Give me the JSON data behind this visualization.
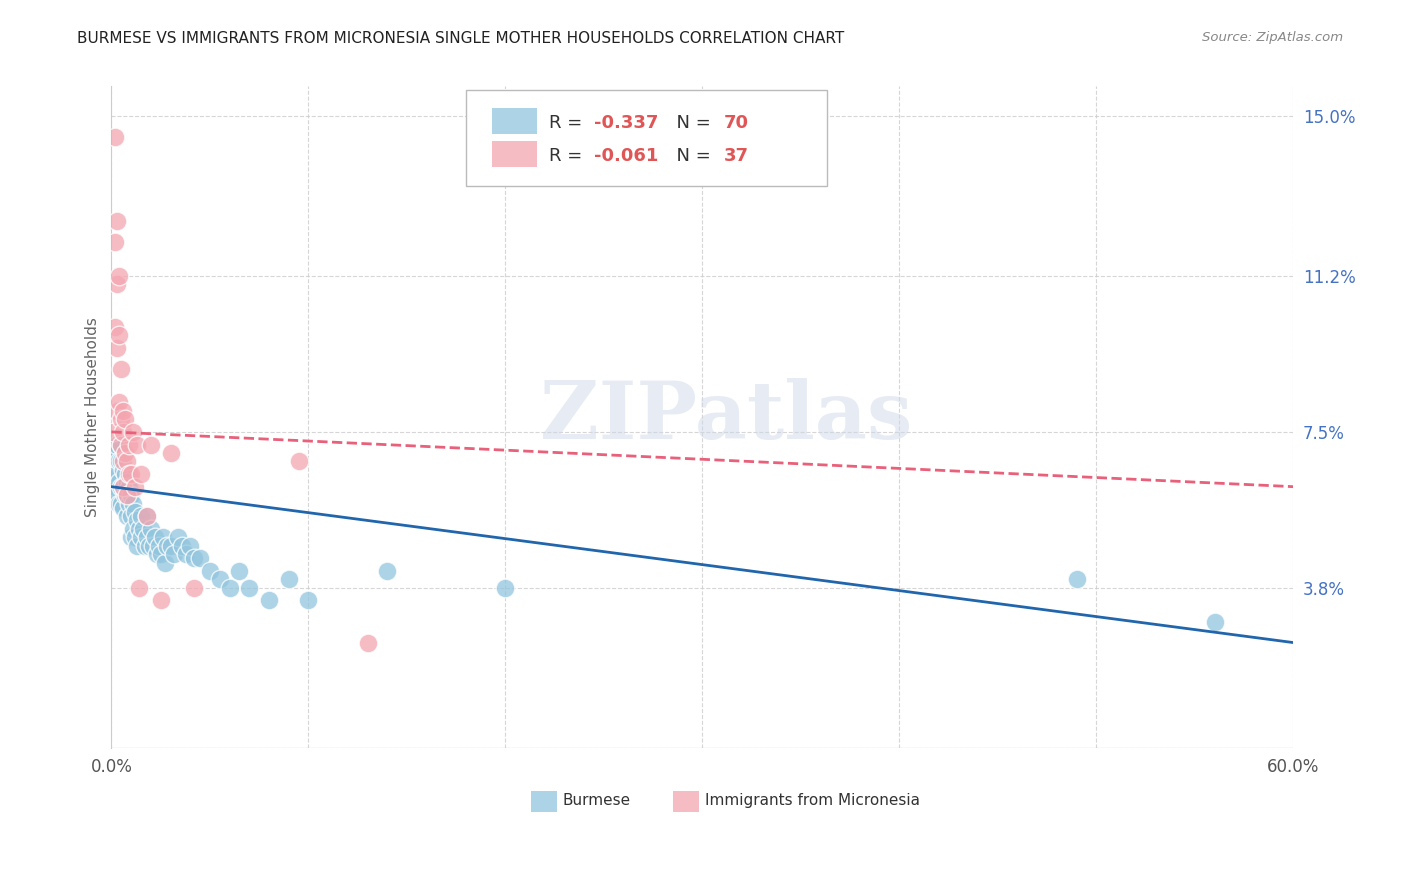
{
  "title": "BURMESE VS IMMIGRANTS FROM MICRONESIA SINGLE MOTHER HOUSEHOLDS CORRELATION CHART",
  "source": "Source: ZipAtlas.com",
  "ylabel": "Single Mother Households",
  "yticks": [
    0.0,
    0.038,
    0.075,
    0.112,
    0.15
  ],
  "ytick_labels": [
    "",
    "3.8%",
    "7.5%",
    "11.2%",
    "15.0%"
  ],
  "xmin": 0.0,
  "xmax": 0.6,
  "ymin": 0.0,
  "ymax": 0.157,
  "burmese_color": "#92c5de",
  "micronesia_color": "#f4a6b0",
  "burmese_line_color": "#2166ac",
  "micronesia_line_color": "#e8607a",
  "burmese_R": -0.337,
  "burmese_N": 70,
  "micronesia_R": -0.061,
  "micronesia_N": 37,
  "watermark": "ZIPatlas",
  "burmese_x": [
    0.001,
    0.002,
    0.002,
    0.003,
    0.003,
    0.003,
    0.003,
    0.004,
    0.004,
    0.004,
    0.005,
    0.005,
    0.005,
    0.005,
    0.006,
    0.006,
    0.006,
    0.007,
    0.007,
    0.008,
    0.008,
    0.008,
    0.009,
    0.009,
    0.01,
    0.01,
    0.01,
    0.011,
    0.011,
    0.012,
    0.012,
    0.013,
    0.013,
    0.014,
    0.015,
    0.015,
    0.016,
    0.017,
    0.018,
    0.018,
    0.019,
    0.02,
    0.021,
    0.022,
    0.023,
    0.024,
    0.025,
    0.026,
    0.027,
    0.028,
    0.03,
    0.032,
    0.034,
    0.036,
    0.038,
    0.04,
    0.042,
    0.045,
    0.05,
    0.055,
    0.06,
    0.065,
    0.07,
    0.08,
    0.09,
    0.1,
    0.14,
    0.2,
    0.49,
    0.56
  ],
  "burmese_y": [
    0.065,
    0.068,
    0.062,
    0.07,
    0.065,
    0.06,
    0.072,
    0.068,
    0.063,
    0.058,
    0.072,
    0.068,
    0.062,
    0.058,
    0.066,
    0.062,
    0.057,
    0.065,
    0.06,
    0.063,
    0.06,
    0.055,
    0.062,
    0.058,
    0.06,
    0.055,
    0.05,
    0.058,
    0.052,
    0.056,
    0.05,
    0.054,
    0.048,
    0.052,
    0.055,
    0.05,
    0.052,
    0.048,
    0.055,
    0.05,
    0.048,
    0.052,
    0.048,
    0.05,
    0.046,
    0.048,
    0.046,
    0.05,
    0.044,
    0.048,
    0.048,
    0.046,
    0.05,
    0.048,
    0.046,
    0.048,
    0.045,
    0.045,
    0.042,
    0.04,
    0.038,
    0.042,
    0.038,
    0.035,
    0.04,
    0.035,
    0.042,
    0.038,
    0.04,
    0.03
  ],
  "micronesia_x": [
    0.001,
    0.002,
    0.002,
    0.002,
    0.003,
    0.003,
    0.003,
    0.003,
    0.004,
    0.004,
    0.004,
    0.005,
    0.005,
    0.005,
    0.006,
    0.006,
    0.006,
    0.006,
    0.007,
    0.007,
    0.008,
    0.008,
    0.009,
    0.009,
    0.01,
    0.011,
    0.012,
    0.013,
    0.014,
    0.015,
    0.018,
    0.02,
    0.025,
    0.03,
    0.042,
    0.095,
    0.13
  ],
  "micronesia_y": [
    0.075,
    0.145,
    0.12,
    0.1,
    0.125,
    0.11,
    0.095,
    0.08,
    0.112,
    0.098,
    0.082,
    0.09,
    0.078,
    0.072,
    0.08,
    0.075,
    0.068,
    0.062,
    0.078,
    0.07,
    0.068,
    0.06,
    0.072,
    0.065,
    0.065,
    0.075,
    0.062,
    0.072,
    0.038,
    0.065,
    0.055,
    0.072,
    0.035,
    0.07,
    0.038,
    0.068,
    0.025
  ]
}
